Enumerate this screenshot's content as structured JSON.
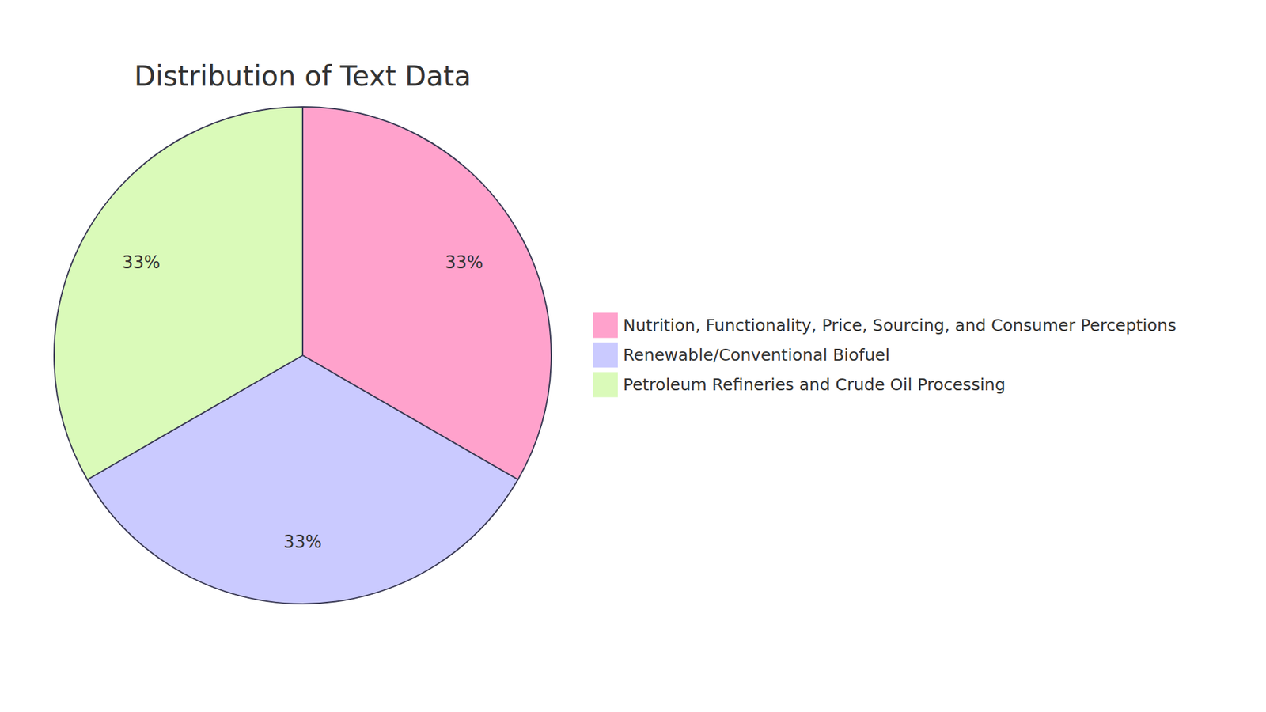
{
  "chart_data": {
    "type": "pie",
    "title": "Distribution of Text Data",
    "categories": [
      "Nutrition, Functionality, Price, Sourcing, and Consumer Perceptions",
      "Renewable/Conventional Biofuel",
      "Petroleum Refineries and Crude Oil Processing"
    ],
    "values": [
      33,
      33,
      33
    ],
    "value_labels": [
      "33%",
      "33%",
      "33%"
    ],
    "colors": [
      "#ffa2cc",
      "#cacaff",
      "#dafab9"
    ],
    "data_labels": true,
    "legend": "right"
  }
}
